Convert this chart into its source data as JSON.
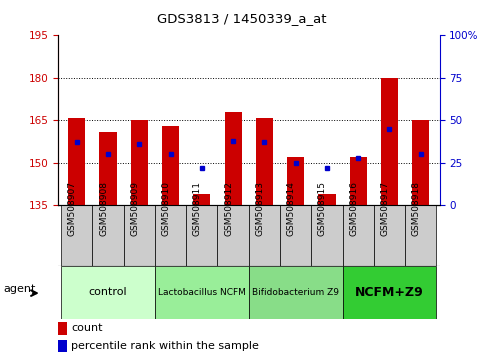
{
  "title": "GDS3813 / 1450339_a_at",
  "samples": [
    "GSM508907",
    "GSM508908",
    "GSM508909",
    "GSM508910",
    "GSM508911",
    "GSM508912",
    "GSM508913",
    "GSM508914",
    "GSM508915",
    "GSM508916",
    "GSM508917",
    "GSM508918"
  ],
  "count_values": [
    166,
    161,
    165,
    163,
    139,
    168,
    166,
    152,
    139,
    152,
    180,
    165
  ],
  "percentile_values": [
    37,
    30,
    36,
    30,
    22,
    38,
    37,
    25,
    22,
    28,
    45,
    30
  ],
  "ylim_left": [
    135,
    195
  ],
  "ylim_right": [
    0,
    100
  ],
  "yticks_left": [
    135,
    150,
    165,
    180,
    195
  ],
  "yticks_right": [
    0,
    25,
    50,
    75,
    100
  ],
  "bar_color": "#cc0000",
  "dot_color": "#0000cc",
  "bar_bottom": 135,
  "group_configs": [
    {
      "label": "control",
      "start": 0,
      "end": 2,
      "color": "#ccffcc",
      "fontsize": 8,
      "bold": false
    },
    {
      "label": "Lactobacillus NCFM",
      "start": 3,
      "end": 5,
      "color": "#99ee99",
      "fontsize": 6.5,
      "bold": false
    },
    {
      "label": "Bifidobacterium Z9",
      "start": 6,
      "end": 8,
      "color": "#88dd88",
      "fontsize": 6.5,
      "bold": false
    },
    {
      "label": "NCFM+Z9",
      "start": 9,
      "end": 11,
      "color": "#33cc33",
      "fontsize": 9,
      "bold": true
    }
  ],
  "agent_label": "agent",
  "legend_count_label": "count",
  "legend_percentile_label": "percentile rank within the sample",
  "tick_color_left": "#cc0000",
  "tick_color_right": "#0000cc",
  "grid_color": "#000000",
  "xlabel_bg": "#cccccc",
  "plot_bg": "#ffffff"
}
